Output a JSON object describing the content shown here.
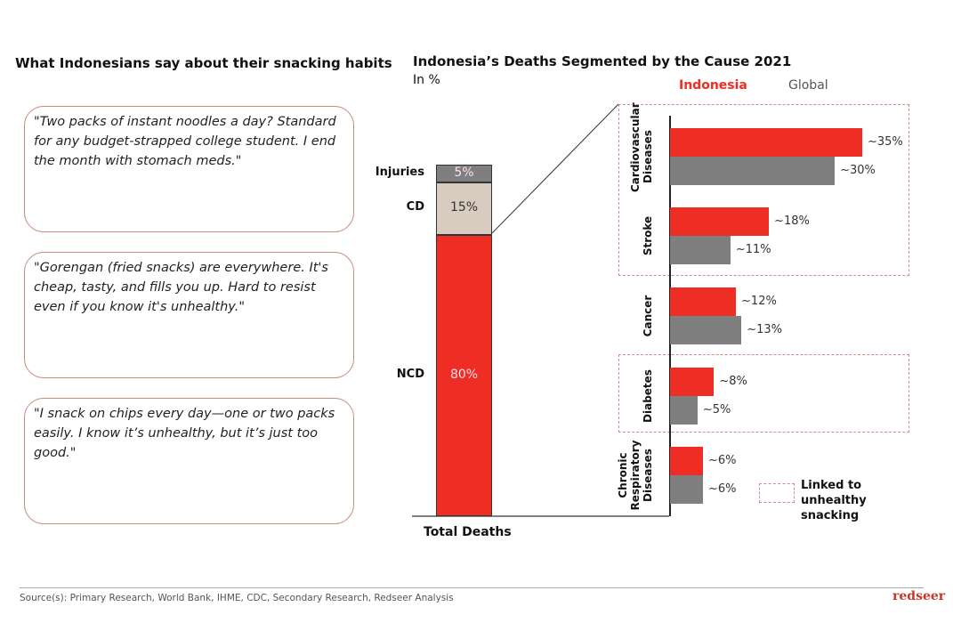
{
  "left": {
    "title": "What Indonesians say about their snacking habits",
    "quotes": [
      "\"Two packs of instant noodles a day? Standard for any budget-strapped college student. I end the month with stomach meds.\"",
      "\"Gorengan (fried snacks) are everywhere. It's cheap, tasty, and fills you up. Hard to resist even if you know it's unhealthy.\"",
      "\"I snack on chips every day—one or two packs easily. I know it’s unhealthy, but it’s just too good.\""
    ]
  },
  "chart_data": [
    {
      "type": "bar",
      "stacked": true,
      "title": "Indonesia’s Deaths Segmented by the Cause 2021",
      "subtitle": "In %",
      "categories": [
        "Total Deaths"
      ],
      "segments": [
        {
          "name": "NCD",
          "value": 80,
          "label": "80%",
          "color": "#ee2e24"
        },
        {
          "name": "CD",
          "value": 15,
          "label": "15%",
          "color": "#d8cbc0"
        },
        {
          "name": "Injuries",
          "value": 5,
          "label": "5%",
          "color": "#7f7f7f"
        }
      ]
    },
    {
      "type": "bar",
      "orientation": "horizontal",
      "categories": [
        "Cardiovascular Diseases",
        "Stroke",
        "Cancer",
        "Diabetes",
        "Chronic Respiratory Diseases"
      ],
      "series": [
        {
          "name": "Indonesia",
          "color": "#ee2e24",
          "values": [
            35,
            18,
            12,
            8,
            6
          ],
          "labels": [
            "~35%",
            "~18%",
            "~12%",
            "~8%",
            "~6%"
          ]
        },
        {
          "name": "Global",
          "color": "#7f7f7f",
          "values": [
            30,
            11,
            13,
            5,
            6
          ],
          "labels": [
            "~30%",
            "~11%",
            "~13%",
            "~5%",
            "~6%"
          ]
        }
      ],
      "highlighted": [
        "Cardiovascular Diseases",
        "Stroke",
        "Diabetes"
      ],
      "highlight_legend": "Linked to unhealthy snacking",
      "highlight_color": "#d98a85",
      "legend_placement": "top"
    }
  ],
  "footer": {
    "source": "Source(s): Primary Research, World Bank, IHME, CDC, Secondary Research, Redseer Analysis",
    "logo": "redseer"
  }
}
